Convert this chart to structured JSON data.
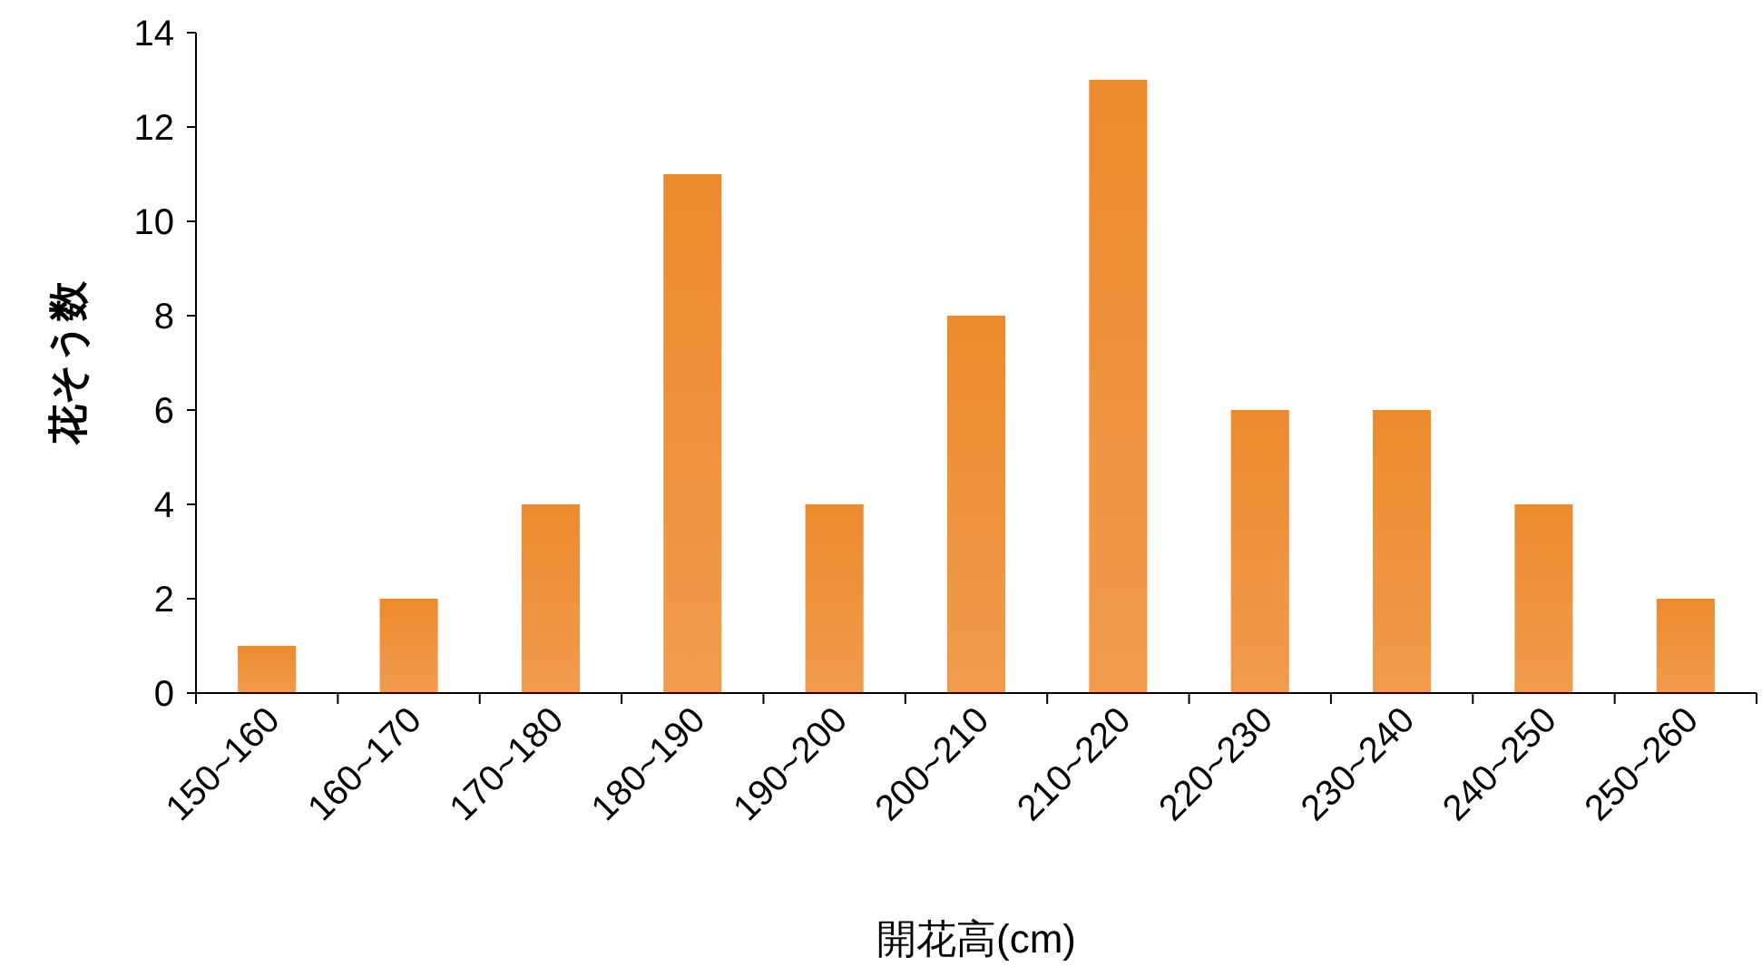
{
  "chart_data": {
    "type": "bar",
    "xlabel": "開花高(cm)",
    "ylabel": "花そう数",
    "categories": [
      "150~160",
      "160~170",
      "170~180",
      "180~190",
      "190~200",
      "200~210",
      "210~220",
      "220~230",
      "230~240",
      "240~250",
      "250~260"
    ],
    "values": [
      1,
      2,
      4,
      11,
      4,
      8,
      13,
      6,
      6,
      4,
      2
    ],
    "color": "#ee8a2e",
    "ylim": [
      0,
      14
    ],
    "yticks": [
      0,
      2,
      4,
      6,
      8,
      10,
      12,
      14
    ],
    "grid": false
  }
}
